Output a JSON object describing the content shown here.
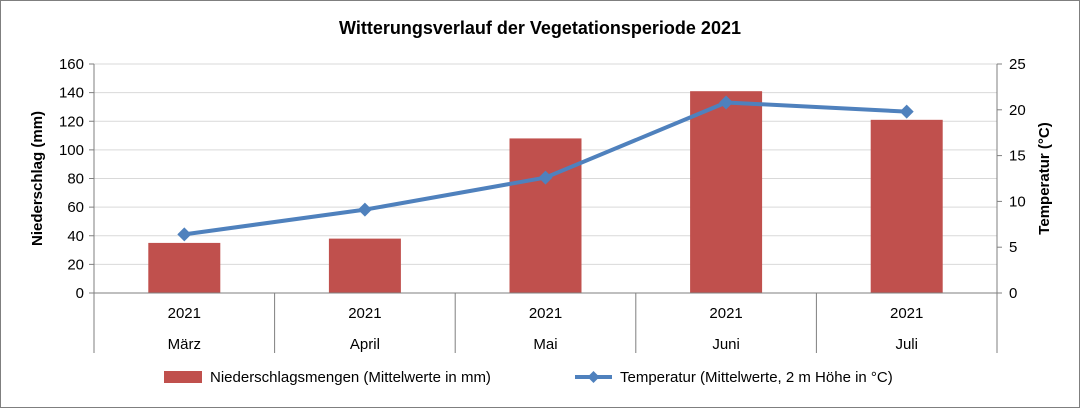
{
  "chart_data": {
    "type": "bar",
    "title": "Witterungsverlauf der Vegetationsperiode 2021",
    "categories": [
      {
        "year": "2021",
        "month": "März"
      },
      {
        "year": "2021",
        "month": "April"
      },
      {
        "year": "2021",
        "month": "Mai"
      },
      {
        "year": "2021",
        "month": "Juni"
      },
      {
        "year": "2021",
        "month": "Juli"
      }
    ],
    "series": [
      {
        "name": "Niederschlagsmengen (Mittelwerte in mm)",
        "type": "bar",
        "axis": "left",
        "color": "#c0504d",
        "values": [
          35,
          38,
          108,
          141,
          121
        ]
      },
      {
        "name": "Temperatur (Mittelwerte, 2 m Höhe in °C)",
        "type": "line",
        "axis": "right",
        "color": "#4f81bd",
        "values": [
          6.4,
          9.1,
          12.6,
          20.8,
          19.8
        ]
      }
    ],
    "ylabel": "Niederschlag (mm)",
    "ylabel_right": "Temperatur (°C)",
    "ylim": [
      0,
      160
    ],
    "yticks": [
      0,
      20,
      40,
      60,
      80,
      100,
      120,
      140,
      160
    ],
    "ylim_right": [
      0,
      25
    ],
    "yticks_right": [
      0,
      5,
      10,
      15,
      20,
      25
    ],
    "grid": true,
    "legend": "bottom"
  }
}
